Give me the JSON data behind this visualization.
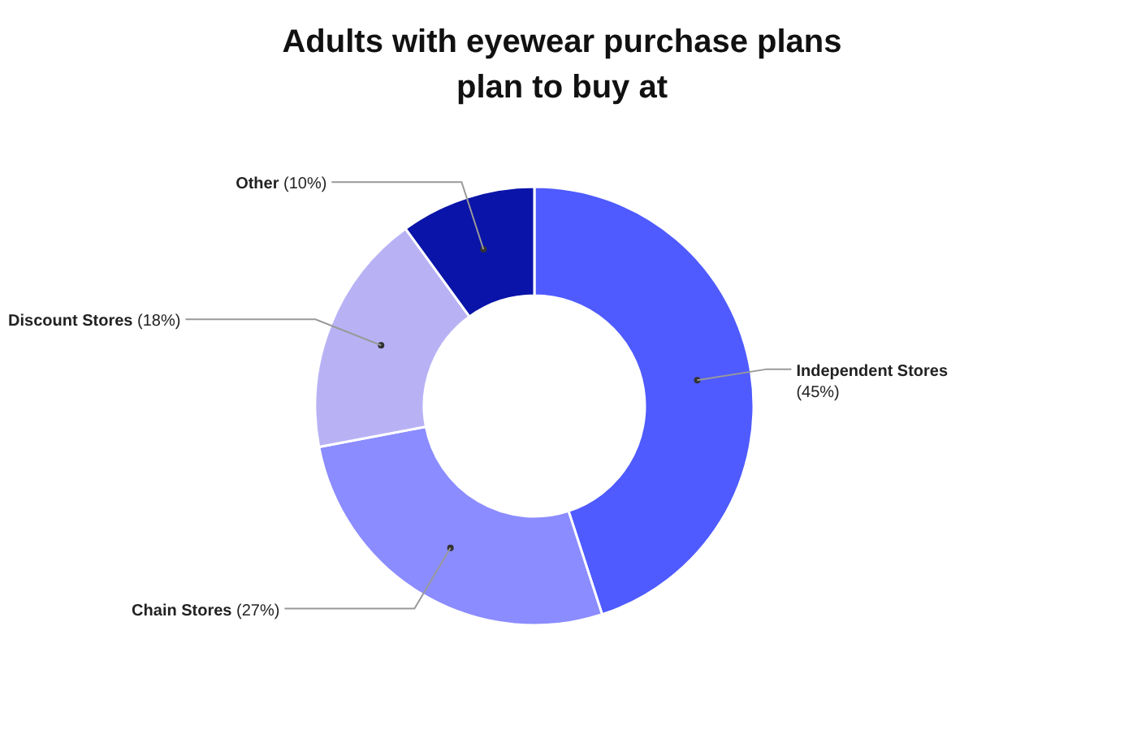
{
  "chart_data": {
    "type": "donut",
    "title": "Adults with eyewear purchase plans plan to buy at",
    "categories": [
      "Independent Stores",
      "Chain Stores",
      "Discount Stores",
      "Other"
    ],
    "values": [
      45,
      27,
      18,
      10
    ],
    "value_labels": [
      "(45%)",
      "(27%)",
      "(18%)",
      "(10%)"
    ],
    "colors": [
      "#4f5bff",
      "#8b8cff",
      "#b8b2f5",
      "#0a14a8"
    ]
  }
}
